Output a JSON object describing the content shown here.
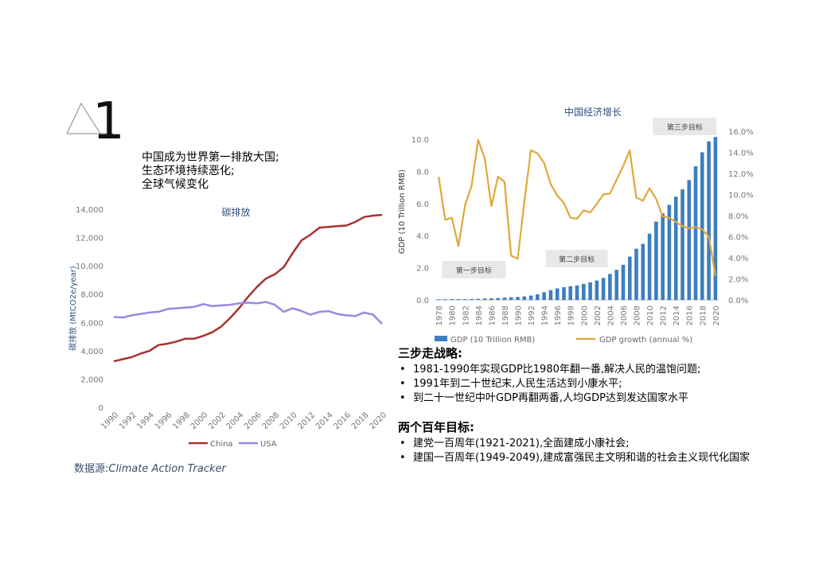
{
  "slide_number": "1",
  "headline": [
    "中国成为世界第一排放大国;",
    "生态环境持续恶化;",
    "全球气候变化"
  ],
  "source": {
    "prefix": "数据源:",
    "name": "Climate Action Tracker"
  },
  "colors": {
    "china": "#a83232",
    "usa": "#9b87e0",
    "gdp_bar": "#3d7ebf",
    "gdp_growth": "#e0a83a",
    "title_blue": "#2f4f7f",
    "milestone_box": "#e8e8e8"
  },
  "chart_data": [
    {
      "type": "line",
      "title": "碳排放",
      "ylabel": "碳排放 (MtCO2e/year)",
      "xlabel": "",
      "ylim": [
        0,
        14000
      ],
      "yticks": [
        "0",
        "2,000",
        "4,000",
        "6,000",
        "8,000",
        "10,000",
        "12,000",
        "14,000"
      ],
      "xticks": [
        "1990",
        "1992",
        "1994",
        "1996",
        "1998",
        "2000",
        "2002",
        "2004",
        "2006",
        "2008",
        "2010",
        "2012",
        "2014",
        "2016",
        "2018",
        "2020"
      ],
      "x": [
        1990,
        1991,
        1992,
        1993,
        1994,
        1995,
        1996,
        1997,
        1998,
        1999,
        2000,
        2001,
        2002,
        2003,
        2004,
        2005,
        2006,
        2007,
        2008,
        2009,
        2010,
        2011,
        2012,
        2013,
        2014,
        2015,
        2016,
        2017,
        2018,
        2019,
        2020
      ],
      "series": [
        {
          "name": "China",
          "values": [
            3250,
            3400,
            3550,
            3800,
            4000,
            4400,
            4500,
            4650,
            4850,
            4850,
            5050,
            5300,
            5700,
            6300,
            7000,
            7800,
            8500,
            9100,
            9400,
            9900,
            10900,
            11800,
            12200,
            12700,
            12750,
            12800,
            12850,
            13100,
            13450,
            13550,
            13600
          ]
        },
        {
          "name": "USA",
          "values": [
            6400,
            6350,
            6500,
            6600,
            6700,
            6750,
            6950,
            7000,
            7050,
            7100,
            7300,
            7150,
            7200,
            7250,
            7350,
            7400,
            7350,
            7450,
            7250,
            6750,
            7000,
            6800,
            6550,
            6750,
            6800,
            6600,
            6500,
            6450,
            6700,
            6550,
            5900
          ]
        }
      ],
      "grid": false,
      "legend": "bottom"
    },
    {
      "type": "bar",
      "title": "中国经济增长",
      "ylabel": "GDP (10 Trillion RMB)",
      "ylim": [
        0,
        10.5
      ],
      "yticks": [
        "0.0",
        "2.0",
        "4.0",
        "6.0",
        "8.0",
        "10.0"
      ],
      "y2lim": [
        0,
        16
      ],
      "y2ticks": [
        "0.0%",
        "2.0%",
        "4.0%",
        "6.0%",
        "8.0%",
        "10.0%",
        "12.0%",
        "14.0%",
        "16.0%"
      ],
      "xticks": [
        "1978",
        "1980",
        "1982",
        "1984",
        "1986",
        "1988",
        "1990",
        "1992",
        "1994",
        "1996",
        "1998",
        "2000",
        "2002",
        "2004",
        "2006",
        "2008",
        "2010",
        "2012",
        "2014",
        "2016",
        "2018",
        "2020"
      ],
      "x": [
        1978,
        1979,
        1980,
        1981,
        1982,
        1983,
        1984,
        1985,
        1986,
        1987,
        1988,
        1989,
        1990,
        1991,
        1992,
        1993,
        1994,
        1995,
        1996,
        1997,
        1998,
        1999,
        2000,
        2001,
        2002,
        2003,
        2004,
        2005,
        2006,
        2007,
        2008,
        2009,
        2010,
        2011,
        2012,
        2013,
        2014,
        2015,
        2016,
        2017,
        2018,
        2019,
        2020
      ],
      "series": [
        {
          "name": "GDP (10 Trillion RMB)",
          "kind": "bar",
          "values": [
            0.04,
            0.04,
            0.05,
            0.05,
            0.05,
            0.06,
            0.07,
            0.09,
            0.1,
            0.12,
            0.15,
            0.17,
            0.19,
            0.22,
            0.27,
            0.35,
            0.48,
            0.61,
            0.72,
            0.79,
            0.85,
            0.9,
            1.0,
            1.1,
            1.21,
            1.37,
            1.62,
            1.87,
            2.19,
            2.7,
            3.19,
            3.49,
            4.12,
            4.88,
            5.39,
            5.92,
            6.43,
            6.89,
            7.46,
            8.32,
            9.19,
            9.87,
            10.15
          ]
        },
        {
          "name": "GDP growth (annual %)",
          "kind": "line",
          "axis": "right",
          "values": [
            11.7,
            7.6,
            7.8,
            5.1,
            9.0,
            10.8,
            15.2,
            13.4,
            8.9,
            11.7,
            11.2,
            4.2,
            3.9,
            9.3,
            14.2,
            13.9,
            13.0,
            11.0,
            9.9,
            9.2,
            7.8,
            7.7,
            8.5,
            8.3,
            9.1,
            10.0,
            10.1,
            11.4,
            12.7,
            14.2,
            9.7,
            9.4,
            10.6,
            9.6,
            7.9,
            7.8,
            7.4,
            7.0,
            6.8,
            6.9,
            6.7,
            6.0,
            2.3
          ]
        }
      ],
      "annotations": [
        "第一步目标",
        "第二步目标",
        "第三步目标"
      ],
      "legend": "bottom"
    }
  ],
  "strategy": {
    "title": "三步走战略:",
    "items": [
      "1981-1990年实现GDP比1980年翻一番,解决人民的温饱问题;",
      "1991年到二十世纪末,人民生活达到小康水平;",
      "到二十一世纪中叶GDP再翻两番,人均GDP达到发达国家水平"
    ]
  },
  "goals": {
    "title": "两个百年目标:",
    "items": [
      "建党一百周年(1921-2021),全面建成小康社会;",
      "建国一百周年(1949-2049),建成富强民主文明和谐的社会主义现代化国家"
    ]
  }
}
